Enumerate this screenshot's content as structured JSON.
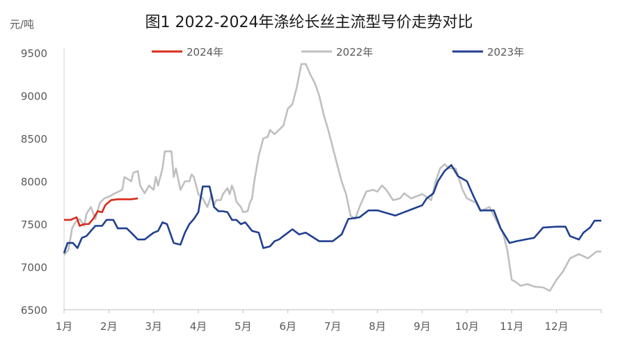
{
  "chart_data": {
    "type": "line",
    "title": "图1 2022-2024年涤纶长丝主流型号价走势对比",
    "unit_label": "元/吨",
    "ylim": [
      6500,
      9500
    ],
    "yticks": [
      6500,
      7000,
      7500,
      8000,
      8500,
      9000,
      9500
    ],
    "xlim": [
      1,
      13
    ],
    "xticks": [
      {
        "v": 1,
        "label": "1月"
      },
      {
        "v": 2,
        "label": "2月"
      },
      {
        "v": 3,
        "label": "3月"
      },
      {
        "v": 4,
        "label": "4月"
      },
      {
        "v": 5,
        "label": "5月"
      },
      {
        "v": 6,
        "label": "6月"
      },
      {
        "v": 7,
        "label": "7月"
      },
      {
        "v": 8,
        "label": "8月"
      },
      {
        "v": 9,
        "label": "9月"
      },
      {
        "v": 10,
        "label": "10月"
      },
      {
        "v": 11,
        "label": "11月"
      },
      {
        "v": 12,
        "label": "12月"
      }
    ],
    "grid": false,
    "legend_position": "top",
    "legend_order": [
      "2024年",
      "2022年",
      "2023年"
    ],
    "series": [
      {
        "name": "2022年",
        "color": "#bfbfbf",
        "points": [
          [
            1.0,
            7140
          ],
          [
            1.1,
            7200
          ],
          [
            1.18,
            7450
          ],
          [
            1.25,
            7520
          ],
          [
            1.35,
            7560
          ],
          [
            1.45,
            7480
          ],
          [
            1.5,
            7620
          ],
          [
            1.6,
            7700
          ],
          [
            1.7,
            7560
          ],
          [
            1.8,
            7750
          ],
          [
            1.9,
            7800
          ],
          [
            2.0,
            7820
          ],
          [
            2.1,
            7850
          ],
          [
            2.3,
            7900
          ],
          [
            2.35,
            8050
          ],
          [
            2.5,
            8000
          ],
          [
            2.55,
            8100
          ],
          [
            2.65,
            8120
          ],
          [
            2.7,
            7950
          ],
          [
            2.8,
            7860
          ],
          [
            2.9,
            7950
          ],
          [
            3.0,
            7900
          ],
          [
            3.05,
            8050
          ],
          [
            3.1,
            7950
          ],
          [
            3.2,
            8150
          ],
          [
            3.25,
            8350
          ],
          [
            3.4,
            8350
          ],
          [
            3.45,
            8050
          ],
          [
            3.5,
            8150
          ],
          [
            3.6,
            7900
          ],
          [
            3.7,
            8000
          ],
          [
            3.8,
            8000
          ],
          [
            3.85,
            8080
          ],
          [
            3.9,
            8050
          ],
          [
            4.0,
            7850
          ],
          [
            4.1,
            7800
          ],
          [
            4.2,
            7700
          ],
          [
            4.3,
            7850
          ],
          [
            4.35,
            7720
          ],
          [
            4.4,
            7780
          ],
          [
            4.5,
            7780
          ],
          [
            4.55,
            7850
          ],
          [
            4.65,
            7920
          ],
          [
            4.7,
            7850
          ],
          [
            4.75,
            7950
          ],
          [
            4.8,
            7880
          ],
          [
            4.85,
            7760
          ],
          [
            4.95,
            7700
          ],
          [
            5.0,
            7640
          ],
          [
            5.1,
            7650
          ],
          [
            5.15,
            7750
          ],
          [
            5.2,
            7800
          ],
          [
            5.25,
            8000
          ],
          [
            5.3,
            8150
          ],
          [
            5.35,
            8300
          ],
          [
            5.45,
            8500
          ],
          [
            5.55,
            8520
          ],
          [
            5.6,
            8600
          ],
          [
            5.7,
            8550
          ],
          [
            5.8,
            8600
          ],
          [
            5.9,
            8650
          ],
          [
            6.0,
            8850
          ],
          [
            6.1,
            8900
          ],
          [
            6.2,
            9100
          ],
          [
            6.3,
            9370
          ],
          [
            6.4,
            9370
          ],
          [
            6.5,
            9250
          ],
          [
            6.6,
            9150
          ],
          [
            6.7,
            9000
          ],
          [
            6.8,
            8780
          ],
          [
            6.9,
            8600
          ],
          [
            7.0,
            8400
          ],
          [
            7.1,
            8200
          ],
          [
            7.2,
            8000
          ],
          [
            7.3,
            7850
          ],
          [
            7.4,
            7600
          ],
          [
            7.5,
            7560
          ],
          [
            7.6,
            7700
          ],
          [
            7.75,
            7880
          ],
          [
            7.9,
            7900
          ],
          [
            8.0,
            7880
          ],
          [
            8.1,
            7950
          ],
          [
            8.2,
            7900
          ],
          [
            8.35,
            7780
          ],
          [
            8.5,
            7800
          ],
          [
            8.6,
            7860
          ],
          [
            8.75,
            7800
          ],
          [
            9.0,
            7850
          ],
          [
            9.2,
            7780
          ],
          [
            9.3,
            8000
          ],
          [
            9.4,
            8150
          ],
          [
            9.5,
            8200
          ],
          [
            9.6,
            8150
          ],
          [
            9.75,
            8150
          ],
          [
            9.9,
            7900
          ],
          [
            10.0,
            7800
          ],
          [
            10.2,
            7750
          ],
          [
            10.3,
            7650
          ],
          [
            10.5,
            7700
          ],
          [
            10.6,
            7600
          ],
          [
            10.7,
            7500
          ],
          [
            10.8,
            7400
          ],
          [
            10.9,
            7200
          ],
          [
            11.0,
            6850
          ],
          [
            11.1,
            6820
          ],
          [
            11.2,
            6780
          ],
          [
            11.35,
            6800
          ],
          [
            11.5,
            6770
          ],
          [
            11.7,
            6760
          ],
          [
            11.85,
            6720
          ],
          [
            12.0,
            6850
          ],
          [
            12.15,
            6950
          ],
          [
            12.3,
            7100
          ],
          [
            12.5,
            7150
          ],
          [
            12.7,
            7100
          ],
          [
            12.9,
            7180
          ],
          [
            13.0,
            7180
          ]
        ]
      },
      {
        "name": "2023年",
        "color": "#1f3f8f",
        "points": [
          [
            1.0,
            7160
          ],
          [
            1.08,
            7280
          ],
          [
            1.2,
            7280
          ],
          [
            1.3,
            7220
          ],
          [
            1.4,
            7340
          ],
          [
            1.5,
            7360
          ],
          [
            1.6,
            7420
          ],
          [
            1.7,
            7480
          ],
          [
            1.85,
            7480
          ],
          [
            1.95,
            7550
          ],
          [
            2.1,
            7550
          ],
          [
            2.2,
            7450
          ],
          [
            2.4,
            7450
          ],
          [
            2.5,
            7400
          ],
          [
            2.65,
            7320
          ],
          [
            2.8,
            7320
          ],
          [
            2.9,
            7360
          ],
          [
            3.0,
            7400
          ],
          [
            3.1,
            7420
          ],
          [
            3.2,
            7520
          ],
          [
            3.3,
            7500
          ],
          [
            3.45,
            7280
          ],
          [
            3.6,
            7260
          ],
          [
            3.7,
            7400
          ],
          [
            3.8,
            7500
          ],
          [
            3.9,
            7560
          ],
          [
            4.0,
            7640
          ],
          [
            4.05,
            7800
          ],
          [
            4.1,
            7940
          ],
          [
            4.25,
            7940
          ],
          [
            4.35,
            7700
          ],
          [
            4.45,
            7650
          ],
          [
            4.55,
            7650
          ],
          [
            4.65,
            7640
          ],
          [
            4.75,
            7550
          ],
          [
            4.85,
            7550
          ],
          [
            4.95,
            7500
          ],
          [
            5.05,
            7520
          ],
          [
            5.2,
            7420
          ],
          [
            5.35,
            7400
          ],
          [
            5.45,
            7220
          ],
          [
            5.6,
            7240
          ],
          [
            5.7,
            7300
          ],
          [
            5.8,
            7320
          ],
          [
            5.9,
            7360
          ],
          [
            6.0,
            7400
          ],
          [
            6.1,
            7440
          ],
          [
            6.25,
            7380
          ],
          [
            6.4,
            7400
          ],
          [
            6.55,
            7350
          ],
          [
            6.7,
            7300
          ],
          [
            7.0,
            7300
          ],
          [
            7.2,
            7380
          ],
          [
            7.35,
            7560
          ],
          [
            7.6,
            7580
          ],
          [
            7.8,
            7660
          ],
          [
            8.0,
            7660
          ],
          [
            8.2,
            7630
          ],
          [
            8.4,
            7600
          ],
          [
            8.6,
            7640
          ],
          [
            8.8,
            7680
          ],
          [
            9.0,
            7720
          ],
          [
            9.1,
            7800
          ],
          [
            9.25,
            7860
          ],
          [
            9.35,
            8000
          ],
          [
            9.5,
            8120
          ],
          [
            9.65,
            8190
          ],
          [
            9.8,
            8060
          ],
          [
            10.0,
            8000
          ],
          [
            10.15,
            7820
          ],
          [
            10.3,
            7660
          ],
          [
            10.6,
            7660
          ],
          [
            10.75,
            7450
          ],
          [
            10.95,
            7280
          ],
          [
            11.1,
            7300
          ],
          [
            11.3,
            7320
          ],
          [
            11.5,
            7340
          ],
          [
            11.7,
            7460
          ],
          [
            12.0,
            7470
          ],
          [
            12.2,
            7470
          ],
          [
            12.3,
            7360
          ],
          [
            12.5,
            7320
          ],
          [
            12.6,
            7400
          ],
          [
            12.75,
            7460
          ],
          [
            12.85,
            7540
          ],
          [
            13.0,
            7540
          ]
        ]
      },
      {
        "name": "2024年",
        "color": "#d92b1b",
        "points": [
          [
            1.0,
            7550
          ],
          [
            1.15,
            7550
          ],
          [
            1.28,
            7580
          ],
          [
            1.35,
            7480
          ],
          [
            1.45,
            7500
          ],
          [
            1.55,
            7500
          ],
          [
            1.65,
            7560
          ],
          [
            1.75,
            7650
          ],
          [
            1.85,
            7640
          ],
          [
            1.92,
            7720
          ],
          [
            2.05,
            7780
          ],
          [
            2.2,
            7790
          ],
          [
            2.35,
            7790
          ],
          [
            2.5,
            7790
          ],
          [
            2.65,
            7800
          ]
        ]
      }
    ]
  }
}
